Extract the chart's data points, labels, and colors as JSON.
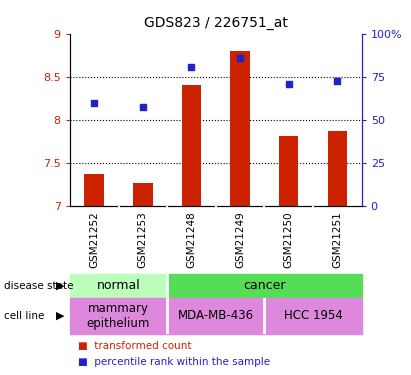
{
  "title": "GDS823 / 226751_at",
  "samples": [
    "GSM21252",
    "GSM21253",
    "GSM21248",
    "GSM21249",
    "GSM21250",
    "GSM21251"
  ],
  "bar_values": [
    7.37,
    7.27,
    8.4,
    8.8,
    7.82,
    7.87
  ],
  "scatter_values": [
    8.2,
    8.15,
    8.62,
    8.72,
    8.42,
    8.45
  ],
  "bar_color": "#cc2200",
  "scatter_color": "#2222cc",
  "ylim_left": [
    7.0,
    9.0
  ],
  "ylim_right": [
    0,
    100
  ],
  "yticks_left": [
    7.0,
    7.5,
    8.0,
    8.5,
    9.0
  ],
  "yticks_right": [
    0,
    25,
    50,
    75,
    100
  ],
  "ytick_labels_left": [
    "7",
    "7.5",
    "8",
    "8.5",
    "9"
  ],
  "ytick_labels_right": [
    "0",
    "25",
    "50",
    "75",
    "100%"
  ],
  "hlines": [
    7.5,
    8.0,
    8.5
  ],
  "disease_state_groups": [
    {
      "label": "normal",
      "span": [
        0,
        2
      ],
      "color": "#bbffbb"
    },
    {
      "label": "cancer",
      "span": [
        2,
        6
      ],
      "color": "#55dd55"
    }
  ],
  "cell_line_groups": [
    {
      "label": "mammary\nepithelium",
      "span": [
        0,
        2
      ],
      "color": "#dd88dd"
    },
    {
      "label": "MDA-MB-436",
      "span": [
        2,
        4
      ],
      "color": "#dd88dd"
    },
    {
      "label": "HCC 1954",
      "span": [
        4,
        6
      ],
      "color": "#dd88dd"
    }
  ],
  "legend_items": [
    {
      "label": "transformed count",
      "color": "#cc2200"
    },
    {
      "label": "percentile rank within the sample",
      "color": "#2222cc"
    }
  ],
  "disease_label": "disease state",
  "cell_line_label": "cell line",
  "bar_bottom": 7.0,
  "sample_box_color": "#cccccc",
  "bar_width": 0.4
}
